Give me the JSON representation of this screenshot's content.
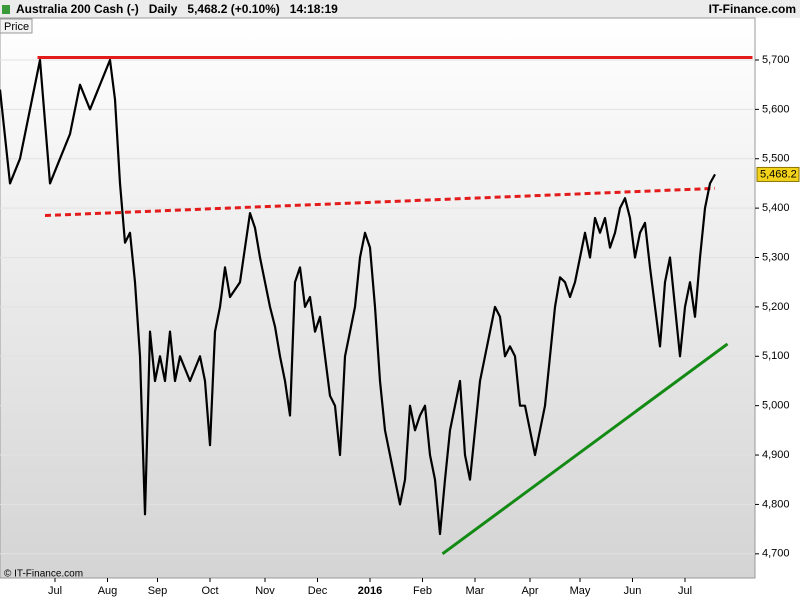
{
  "chart_data": {
    "type": "line",
    "title": "Australia 200 Cash (-)   Daily   5,468.2 (+0.10%)   14:18:19",
    "source": "IT-Finance.com",
    "copyright": "© IT-Finance.com",
    "panel_label": "Price",
    "last_price_label": "5,468.2",
    "x": [
      0,
      4,
      8,
      12,
      16,
      20,
      24,
      28,
      32,
      36,
      40,
      44,
      46,
      48,
      50,
      52,
      54,
      56,
      58,
      60,
      62,
      64,
      66,
      68,
      70,
      72,
      76,
      80,
      82,
      84,
      86,
      88,
      90,
      92,
      96,
      100,
      102,
      104,
      106,
      108,
      110,
      112,
      114,
      116,
      118,
      120,
      122,
      124,
      126,
      128,
      130,
      132,
      134,
      136,
      138,
      140,
      142,
      144,
      146,
      148,
      150,
      152,
      154,
      156,
      158,
      160,
      162,
      164,
      166,
      168,
      170,
      172,
      174,
      176,
      178,
      180,
      182,
      184,
      186,
      188,
      190,
      192,
      194,
      196,
      198,
      200,
      202,
      204,
      206,
      208,
      210,
      212,
      214,
      216,
      218,
      220,
      222,
      224,
      226,
      228,
      230,
      232,
      234,
      236,
      238,
      240,
      242,
      244,
      246,
      248,
      250,
      252,
      254,
      256,
      258,
      260,
      262,
      264,
      266,
      268,
      270,
      272,
      274,
      276,
      278,
      280,
      282,
      284,
      286
    ],
    "series": [
      {
        "name": "Price",
        "color": "#000000",
        "values": [
          5640,
          5450,
          5500,
          5600,
          5700,
          5450,
          5500,
          5550,
          5650,
          5600,
          5650,
          5700,
          5620,
          5450,
          5330,
          5350,
          5250,
          5100,
          4780,
          5150,
          5050,
          5100,
          5050,
          5150,
          5050,
          5100,
          5050,
          5100,
          5050,
          4920,
          5150,
          5200,
          5280,
          5220,
          5250,
          5390,
          5360,
          5300,
          5250,
          5200,
          5160,
          5100,
          5050,
          4980,
          5250,
          5280,
          5200,
          5220,
          5150,
          5180,
          5100,
          5020,
          5000,
          4900,
          5100,
          5150,
          5200,
          5300,
          5350,
          5320,
          5200,
          5050,
          4950,
          4900,
          4850,
          4800,
          4850,
          5000,
          4950,
          4980,
          5000,
          4900,
          4850,
          4740,
          4850,
          4950,
          5000,
          5050,
          4900,
          4850,
          4950,
          5050,
          5100,
          5150,
          5200,
          5180,
          5100,
          5120,
          5100,
          5000,
          5000,
          4950,
          4900,
          4950,
          5000,
          5100,
          5200,
          5260,
          5250,
          5220,
          5250,
          5300,
          5350,
          5300,
          5380,
          5350,
          5380,
          5320,
          5350,
          5400,
          5420,
          5380,
          5300,
          5350,
          5370,
          5280,
          5200,
          5120,
          5250,
          5300,
          5200,
          5100,
          5200,
          5250,
          5180,
          5300,
          5400,
          5450,
          5468.2
        ]
      }
    ],
    "trendlines": [
      {
        "color": "#e31b1b",
        "style": "solid",
        "x": [
          15,
          301
        ],
        "y": [
          5705,
          5705
        ]
      },
      {
        "color": "#e31b1b",
        "style": "dashed",
        "x": [
          18,
          286
        ],
        "y": [
          5385,
          5440
        ]
      },
      {
        "color": "#138a13",
        "style": "solid",
        "x": [
          177,
          291
        ],
        "y": [
          4700,
          5125
        ]
      }
    ],
    "xlim": [
      0,
      302
    ],
    "xticks": [
      {
        "value": 22,
        "label": "Jul"
      },
      {
        "value": 43,
        "label": "Aug"
      },
      {
        "value": 63,
        "label": "Sep"
      },
      {
        "value": 84,
        "label": "Oct"
      },
      {
        "value": 106,
        "label": "Nov"
      },
      {
        "value": 127,
        "label": "Dec"
      },
      {
        "value": 148,
        "label": "2016"
      },
      {
        "value": 169,
        "label": "Feb"
      },
      {
        "value": 190,
        "label": "Mar"
      },
      {
        "value": 212,
        "label": "Apr"
      },
      {
        "value": 232,
        "label": "May"
      },
      {
        "value": 253,
        "label": "Jun"
      },
      {
        "value": 274,
        "label": "Jul"
      }
    ],
    "ylim": [
      4651,
      5785
    ],
    "yticks": [
      {
        "value": 4700,
        "label": "4,700"
      },
      {
        "value": 4800,
        "label": "4,800"
      },
      {
        "value": 4900,
        "label": "4,900"
      },
      {
        "value": 5000,
        "label": "5,000"
      },
      {
        "value": 5100,
        "label": "5,100"
      },
      {
        "value": 5200,
        "label": "5,200"
      },
      {
        "value": 5300,
        "label": "5,300"
      },
      {
        "value": 5400,
        "label": "5,400"
      },
      {
        "value": 5500,
        "label": "5,500"
      },
      {
        "value": 5600,
        "label": "5,600"
      },
      {
        "value": 5700,
        "label": "5,700"
      }
    ],
    "grid": true
  }
}
